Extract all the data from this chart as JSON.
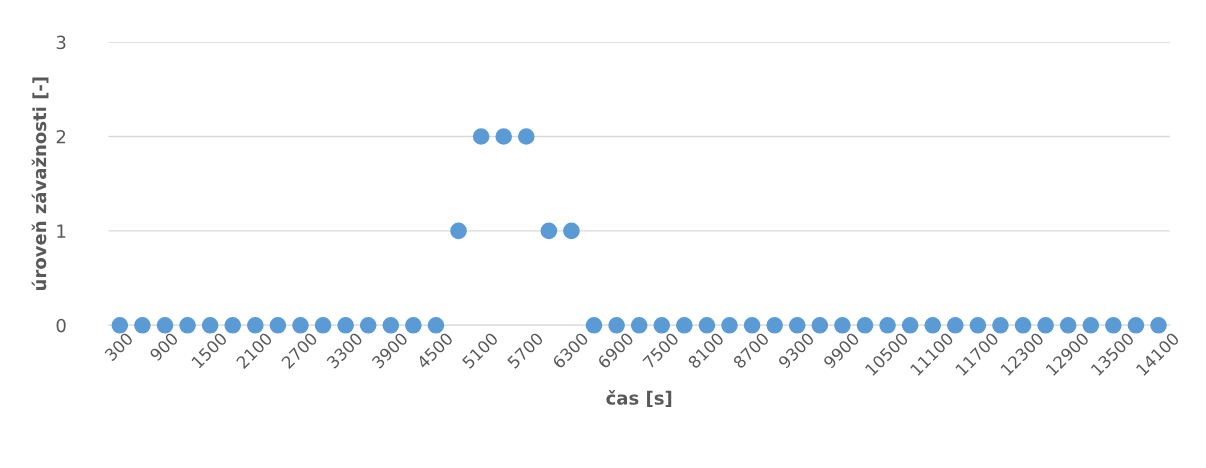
{
  "chart_data": {
    "type": "scatter",
    "xlabel": "čas [s]",
    "ylabel": "úroveň závažnosti [-]",
    "categories": [
      "300",
      null,
      "900",
      null,
      "1500",
      null,
      "2100",
      null,
      "2700",
      null,
      "3300",
      null,
      "3900",
      null,
      "4500",
      null,
      "5100",
      null,
      "5700",
      null,
      "6300",
      null,
      "6900",
      null,
      "7500",
      null,
      "8100",
      null,
      "8700",
      null,
      "9300",
      null,
      "9900",
      null,
      "10500",
      null,
      "11100",
      null,
      "11700",
      null,
      "12300",
      null,
      "12900",
      null,
      "13500",
      null,
      "14100"
    ],
    "series": [
      {
        "color": "#5b9bd5",
        "values": [
          0,
          0,
          0,
          0,
          0,
          0,
          0,
          0,
          0,
          0,
          0,
          0,
          0,
          0,
          0,
          1,
          2,
          2,
          2,
          1,
          1,
          0,
          0,
          0,
          0,
          0,
          0,
          0,
          0,
          0,
          0,
          0,
          0,
          0,
          0,
          0,
          0,
          0,
          0,
          0,
          0,
          0,
          0,
          0,
          0,
          0,
          0
        ]
      }
    ],
    "ylim": [
      0,
      3
    ],
    "yticks": [
      0,
      1,
      2,
      3
    ],
    "grid": "y",
    "marker": "circle",
    "legend": false
  }
}
